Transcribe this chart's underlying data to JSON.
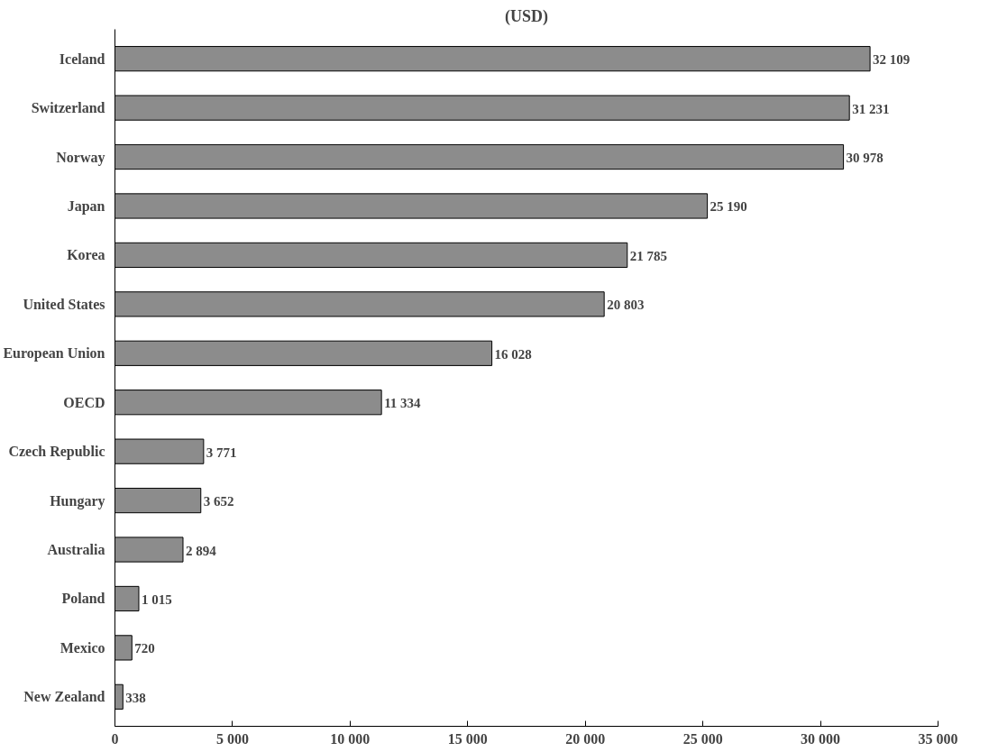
{
  "chart_data": {
    "type": "bar",
    "orientation": "horizontal",
    "title": "(USD)",
    "categories": [
      "Iceland",
      "Switzerland",
      "Norway",
      "Japan",
      "Korea",
      "United States",
      "European Union",
      "OECD",
      "Czech Republic",
      "Hungary",
      "Australia",
      "Poland",
      "Mexico",
      "New Zealand"
    ],
    "values": [
      32109,
      31231,
      30978,
      25190,
      21785,
      20803,
      16028,
      11334,
      3771,
      3652,
      2894,
      1015,
      720,
      338
    ],
    "value_labels": [
      "32 109",
      "31 231",
      "30 978",
      "25 190",
      "21 785",
      "20 803",
      "16 028",
      "11 334",
      "3 771",
      "3 652",
      "2 894",
      "1 015",
      "720",
      "338"
    ],
    "color": "#8c8c8c",
    "xlim": [
      0,
      35000
    ],
    "xticks": [
      0,
      {
        "value": 5000,
        "label": "5 000"
      },
      {
        "value": 10000,
        "label": "10 000"
      },
      {
        "value": 15000,
        "label": "15 000"
      },
      {
        "value": 20000,
        "label": "20 000"
      },
      {
        "value": 25000,
        "label": "25 000"
      },
      {
        "value": 30000,
        "label": "30 000"
      },
      {
        "value": 35000,
        "label": "35 000"
      }
    ],
    "grid": false
  }
}
